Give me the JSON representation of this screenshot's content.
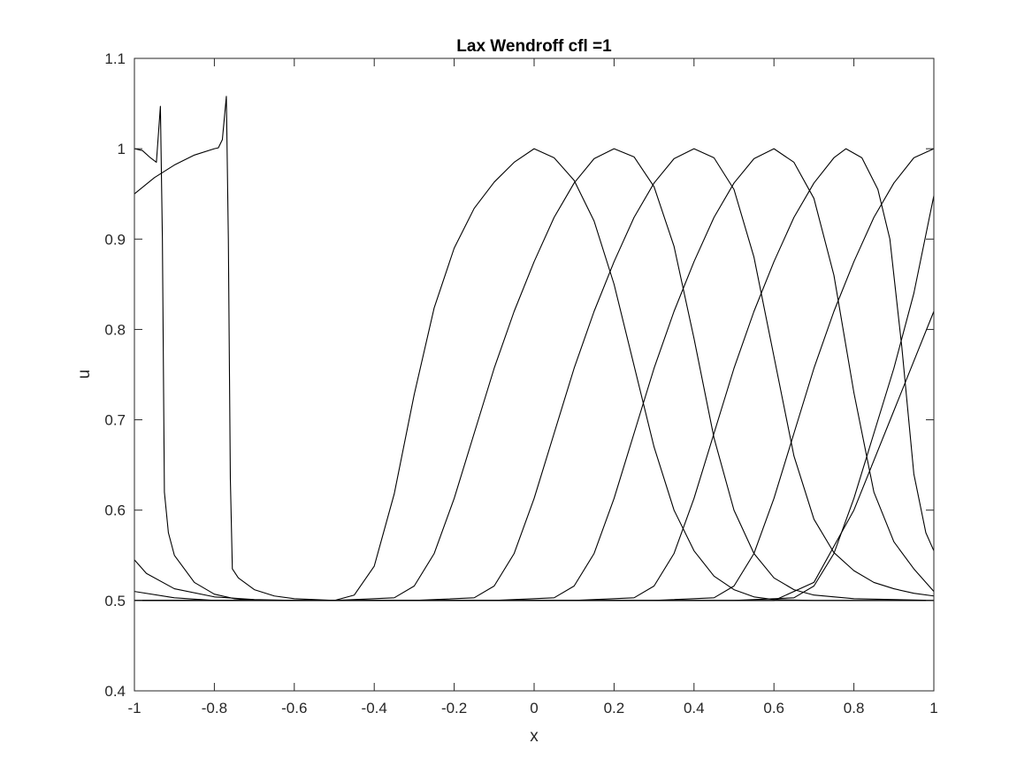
{
  "chart_data": {
    "type": "line",
    "title": "Lax Wendroff cfl =1",
    "xlabel": "x",
    "ylabel": "u",
    "xlim": [
      -1,
      1
    ],
    "ylim": [
      0.4,
      1.1
    ],
    "xticks": [
      -1,
      -0.8,
      -0.6,
      -0.4,
      -0.2,
      0,
      0.2,
      0.4,
      0.6,
      0.8,
      1
    ],
    "xtick_labels": [
      "-1",
      "-0.8",
      "-0.6",
      "-0.4",
      "-0.2",
      "0",
      "0.2",
      "0.4",
      "0.6",
      "0.8",
      "1"
    ],
    "yticks": [
      0.4,
      0.5,
      0.6,
      0.7,
      0.8,
      0.9,
      1,
      1.1
    ],
    "ytick_labels": [
      "0.4",
      "0.5",
      "0.6",
      "0.7",
      "0.8",
      "0.9",
      "1",
      "1.1"
    ],
    "grid": false,
    "box": true,
    "line_color": "#000000",
    "series": [
      {
        "values": [
          [
            -1,
            0.5
          ],
          [
            -0.8,
            0.5
          ],
          [
            -0.6,
            0.5
          ],
          [
            -0.5,
            0.5
          ],
          [
            -0.45,
            0.506
          ],
          [
            -0.4,
            0.538
          ],
          [
            -0.35,
            0.618
          ],
          [
            -0.3,
            0.728
          ],
          [
            -0.25,
            0.824
          ],
          [
            -0.2,
            0.89
          ],
          [
            -0.15,
            0.934
          ],
          [
            -0.1,
            0.963
          ],
          [
            -0.05,
            0.985
          ],
          [
            0,
            1
          ],
          [
            0.05,
            0.99
          ],
          [
            0.1,
            0.965
          ],
          [
            0.15,
            0.92
          ],
          [
            0.2,
            0.85
          ],
          [
            0.25,
            0.76
          ],
          [
            0.3,
            0.67
          ],
          [
            0.35,
            0.6
          ],
          [
            0.4,
            0.555
          ],
          [
            0.45,
            0.527
          ],
          [
            0.5,
            0.512
          ],
          [
            0.55,
            0.504
          ],
          [
            0.6,
            0.501
          ],
          [
            0.7,
            0.5
          ],
          [
            1,
            0.5
          ]
        ]
      },
      {
        "values": [
          [
            -1,
            0.5
          ],
          [
            -0.5,
            0.5
          ],
          [
            -0.35,
            0.503
          ],
          [
            -0.3,
            0.516
          ],
          [
            -0.25,
            0.552
          ],
          [
            -0.2,
            0.613
          ],
          [
            -0.15,
            0.685
          ],
          [
            -0.1,
            0.757
          ],
          [
            -0.05,
            0.82
          ],
          [
            0,
            0.875
          ],
          [
            0.05,
            0.924
          ],
          [
            0.1,
            0.962
          ],
          [
            0.15,
            0.989
          ],
          [
            0.2,
            1
          ],
          [
            0.25,
            0.991
          ],
          [
            0.3,
            0.958
          ],
          [
            0.35,
            0.892
          ],
          [
            0.4,
            0.79
          ],
          [
            0.45,
            0.68
          ],
          [
            0.5,
            0.6
          ],
          [
            0.55,
            0.552
          ],
          [
            0.6,
            0.525
          ],
          [
            0.65,
            0.512
          ],
          [
            0.7,
            0.506
          ],
          [
            0.8,
            0.502
          ],
          [
            1,
            0.5
          ]
        ]
      },
      {
        "values": [
          [
            -1,
            0.5
          ],
          [
            -0.3,
            0.5
          ],
          [
            -0.15,
            0.503
          ],
          [
            -0.1,
            0.516
          ],
          [
            -0.05,
            0.552
          ],
          [
            0,
            0.613
          ],
          [
            0.05,
            0.685
          ],
          [
            0.1,
            0.757
          ],
          [
            0.15,
            0.82
          ],
          [
            0.2,
            0.875
          ],
          [
            0.25,
            0.924
          ],
          [
            0.3,
            0.962
          ],
          [
            0.35,
            0.989
          ],
          [
            0.4,
            1
          ],
          [
            0.45,
            0.99
          ],
          [
            0.5,
            0.955
          ],
          [
            0.55,
            0.88
          ],
          [
            0.6,
            0.77
          ],
          [
            0.65,
            0.66
          ],
          [
            0.7,
            0.59
          ],
          [
            0.75,
            0.553
          ],
          [
            0.8,
            0.533
          ],
          [
            0.85,
            0.52
          ],
          [
            0.9,
            0.513
          ],
          [
            0.95,
            0.508
          ],
          [
            1,
            0.505
          ]
        ]
      },
      {
        "values": [
          [
            -1,
            0.5
          ],
          [
            -0.1,
            0.5
          ],
          [
            0.05,
            0.503
          ],
          [
            0.1,
            0.516
          ],
          [
            0.15,
            0.552
          ],
          [
            0.2,
            0.613
          ],
          [
            0.25,
            0.685
          ],
          [
            0.3,
            0.757
          ],
          [
            0.35,
            0.82
          ],
          [
            0.4,
            0.875
          ],
          [
            0.45,
            0.924
          ],
          [
            0.5,
            0.962
          ],
          [
            0.55,
            0.989
          ],
          [
            0.6,
            1
          ],
          [
            0.65,
            0.985
          ],
          [
            0.7,
            0.945
          ],
          [
            0.75,
            0.86
          ],
          [
            0.8,
            0.73
          ],
          [
            0.85,
            0.62
          ],
          [
            0.9,
            0.565
          ],
          [
            0.95,
            0.535
          ],
          [
            1,
            0.51
          ]
        ]
      },
      {
        "values": [
          [
            -1,
            0.5
          ],
          [
            0.1,
            0.5
          ],
          [
            0.25,
            0.503
          ],
          [
            0.3,
            0.516
          ],
          [
            0.35,
            0.552
          ],
          [
            0.4,
            0.613
          ],
          [
            0.45,
            0.685
          ],
          [
            0.5,
            0.757
          ],
          [
            0.55,
            0.82
          ],
          [
            0.6,
            0.875
          ],
          [
            0.65,
            0.924
          ],
          [
            0.7,
            0.962
          ],
          [
            0.75,
            0.99
          ],
          [
            0.78,
            1
          ],
          [
            0.82,
            0.99
          ],
          [
            0.86,
            0.955
          ],
          [
            0.89,
            0.9
          ],
          [
            0.92,
            0.78
          ],
          [
            0.95,
            0.64
          ],
          [
            0.98,
            0.575
          ],
          [
            1,
            0.555
          ]
        ]
      },
      {
        "values": [
          [
            -1,
            0.95
          ],
          [
            -0.95,
            0.968
          ],
          [
            -0.9,
            0.982
          ],
          [
            -0.85,
            0.993
          ],
          [
            -0.8,
            1
          ],
          [
            -0.79,
            1.001
          ],
          [
            -0.78,
            1.01
          ],
          [
            -0.77,
            1.058
          ],
          [
            -0.765,
            0.9
          ],
          [
            -0.76,
            0.635
          ],
          [
            -0.755,
            0.535
          ],
          [
            -0.74,
            0.525
          ],
          [
            -0.7,
            0.512
          ],
          [
            -0.65,
            0.505
          ],
          [
            -0.6,
            0.502
          ],
          [
            -0.5,
            0.5
          ],
          [
            0.3,
            0.5
          ],
          [
            0.45,
            0.503
          ],
          [
            0.5,
            0.516
          ],
          [
            0.55,
            0.552
          ],
          [
            0.6,
            0.613
          ],
          [
            0.65,
            0.685
          ],
          [
            0.7,
            0.757
          ],
          [
            0.75,
            0.82
          ],
          [
            0.8,
            0.875
          ],
          [
            0.85,
            0.924
          ],
          [
            0.9,
            0.962
          ],
          [
            0.95,
            0.99
          ],
          [
            1,
            1
          ]
        ]
      },
      {
        "values": [
          [
            -1,
            1
          ],
          [
            -0.98,
            0.998
          ],
          [
            -0.96,
            0.99
          ],
          [
            -0.945,
            0.985
          ],
          [
            -0.935,
            1.047
          ],
          [
            -0.93,
            0.9
          ],
          [
            -0.925,
            0.62
          ],
          [
            -0.915,
            0.575
          ],
          [
            -0.9,
            0.55
          ],
          [
            -0.85,
            0.52
          ],
          [
            -0.8,
            0.507
          ],
          [
            -0.75,
            0.502
          ],
          [
            -0.7,
            0.5
          ],
          [
            0.5,
            0.5
          ],
          [
            0.65,
            0.503
          ],
          [
            0.7,
            0.516
          ],
          [
            0.75,
            0.552
          ],
          [
            0.8,
            0.613
          ],
          [
            0.85,
            0.685
          ],
          [
            0.9,
            0.757
          ],
          [
            0.95,
            0.84
          ],
          [
            1,
            0.948
          ]
        ]
      },
      {
        "values": [
          [
            -1,
            0.545
          ],
          [
            -0.97,
            0.53
          ],
          [
            -0.9,
            0.513
          ],
          [
            -0.8,
            0.504
          ],
          [
            -0.7,
            0.501
          ],
          [
            -0.6,
            0.5
          ],
          [
            0.5,
            0.5
          ],
          [
            0.6,
            0.5
          ],
          [
            0.7,
            0.52
          ],
          [
            0.8,
            0.6
          ],
          [
            0.9,
            0.71
          ],
          [
            1,
            0.82
          ]
        ]
      },
      {
        "values": [
          [
            -1,
            0.51
          ],
          [
            -0.9,
            0.503
          ],
          [
            -0.8,
            0.5
          ],
          [
            1,
            0.5
          ]
        ]
      }
    ]
  }
}
